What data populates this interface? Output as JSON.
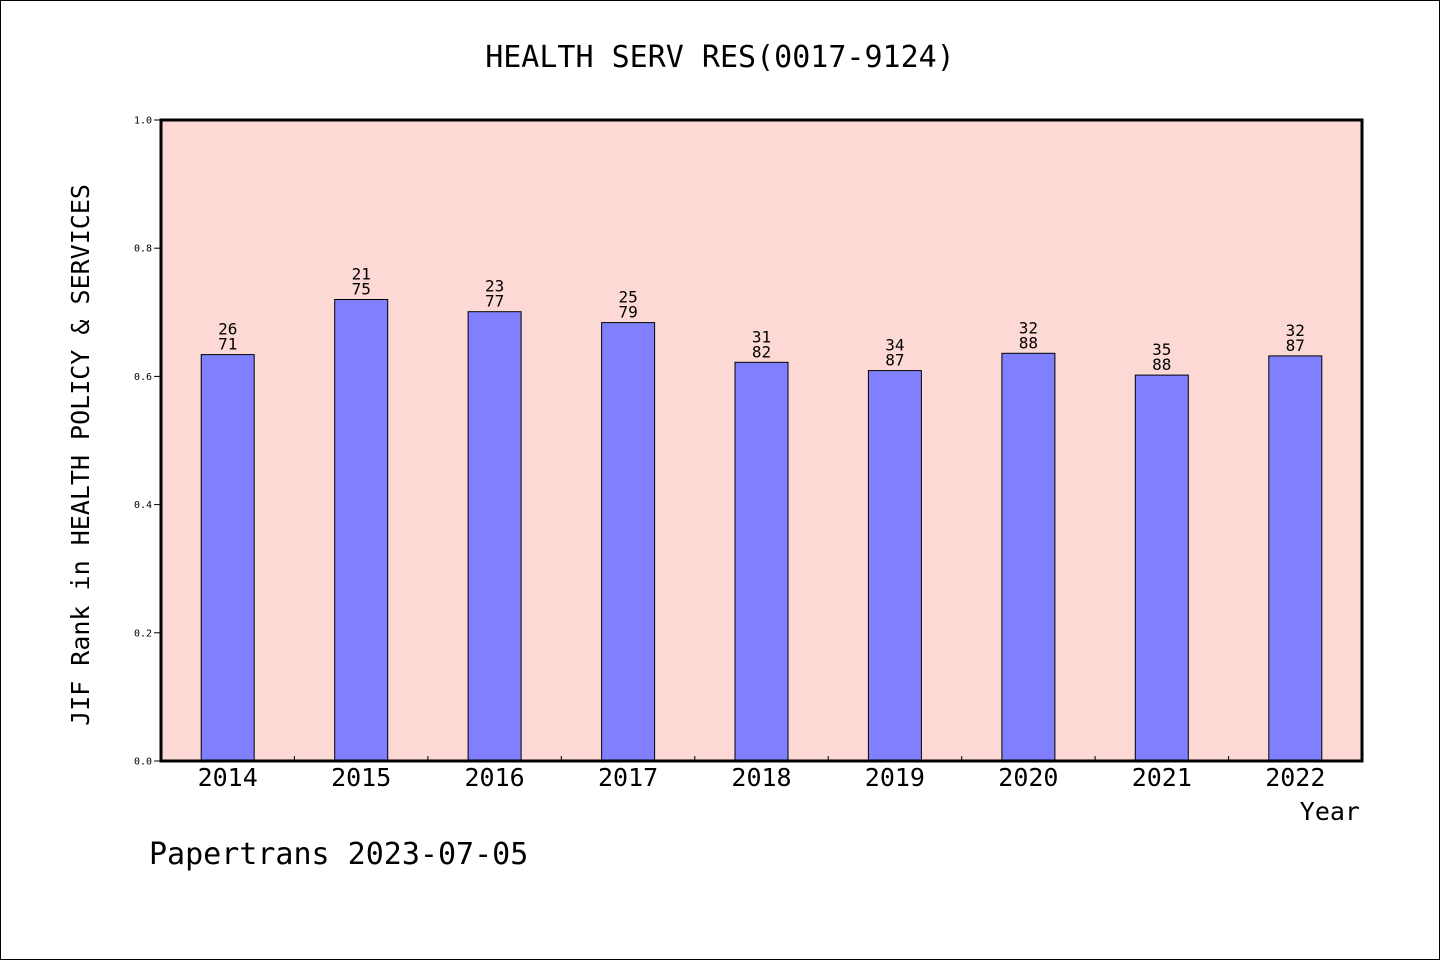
{
  "chart_data": {
    "type": "bar",
    "title": "HEALTH SERV RES(0017-9124)",
    "xlabel": "Year",
    "ylabel": "JIF Rank in HEALTH POLICY & SERVICES",
    "ylim": [
      0,
      1.0
    ],
    "yticks": [
      "0.0",
      "0.2",
      "0.4",
      "0.6",
      "0.8",
      "1.0"
    ],
    "categories": [
      "2014",
      "2015",
      "2016",
      "2017",
      "2018",
      "2019",
      "2020",
      "2021",
      "2022"
    ],
    "values": [
      0.634,
      0.72,
      0.701,
      0.684,
      0.622,
      0.609,
      0.636,
      0.602,
      0.632
    ],
    "rank_labels": [
      [
        "26",
        "71"
      ],
      [
        "21",
        "75"
      ],
      [
        "23",
        "77"
      ],
      [
        "25",
        "79"
      ],
      [
        "31",
        "82"
      ],
      [
        "34",
        "87"
      ],
      [
        "32",
        "88"
      ],
      [
        "35",
        "88"
      ],
      [
        "32",
        "87"
      ]
    ],
    "grid": false,
    "colors": {
      "plot_background": "#fdd9d6",
      "bar_fill": "#8080ff",
      "bar_edge": "#000000"
    }
  },
  "footer": "Papertrans 2023-07-05"
}
